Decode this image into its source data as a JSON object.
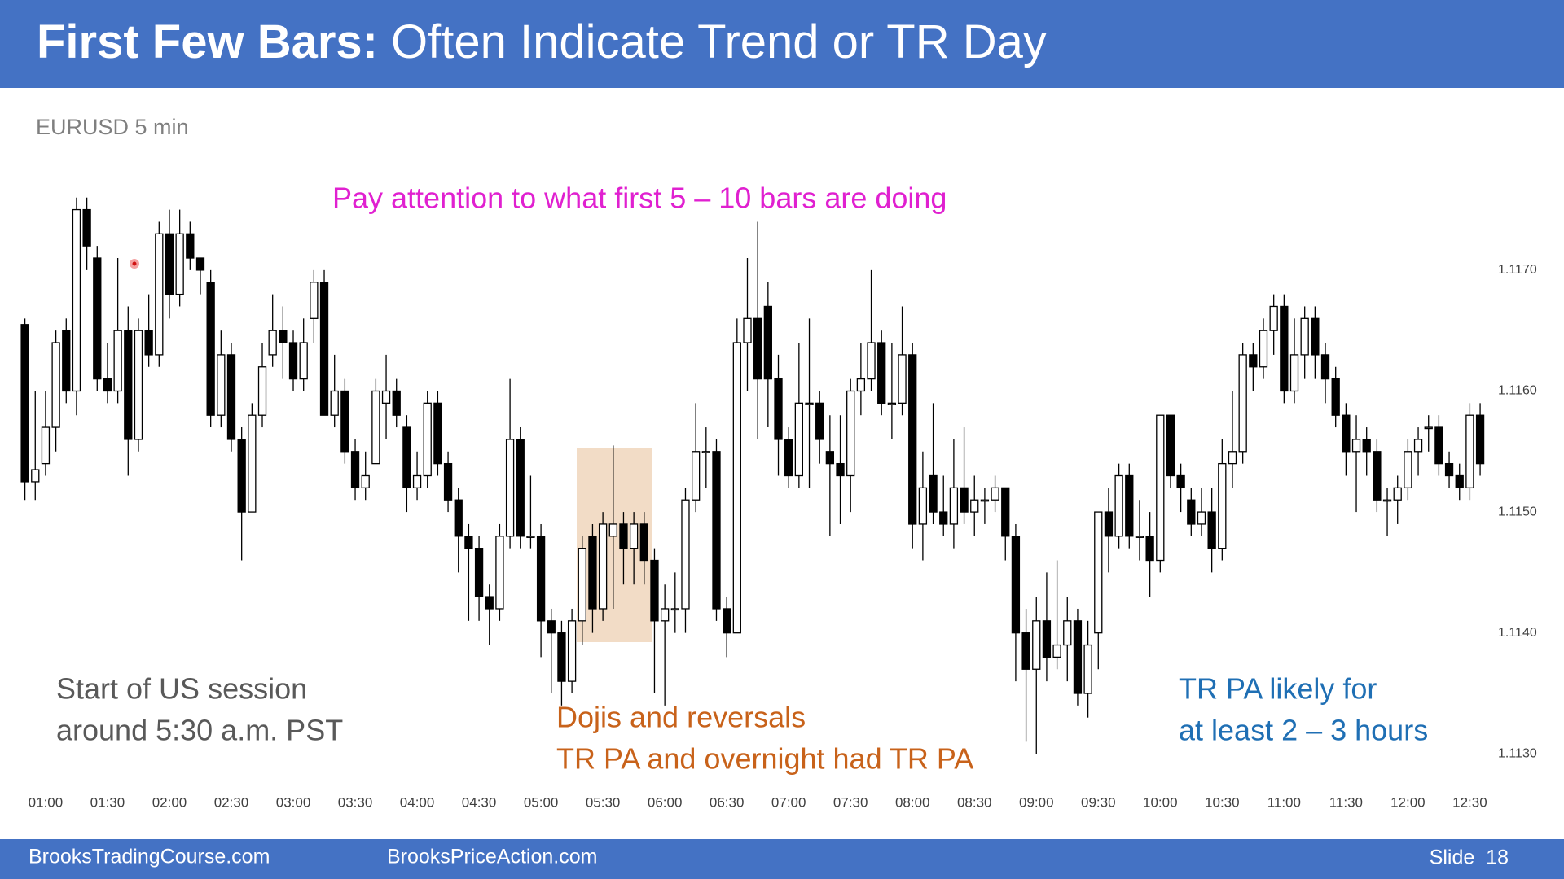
{
  "slide": {
    "title_bold": "First Few Bars:",
    "title_rest": "Often Indicate Trend or TR Day",
    "footer_left": "BrooksTradingCourse.com",
    "footer_center": "BrooksPriceAction.com",
    "footer_right": "Slide  18"
  },
  "chart_data": {
    "type": "candlestick",
    "subtitle": "EURUSD 5 min",
    "up_color": "#ffffff",
    "down_color": "#000000",
    "annotations": [
      {
        "lines": [
          "Pay attention to what first 5 – 10 bars are doing"
        ],
        "color": "#e020d0"
      },
      {
        "lines": [
          "Start of US session",
          "around 5:30 a.m. PST"
        ],
        "color": "#595959"
      },
      {
        "lines": [
          "Dojis and reversals",
          "TR PA and overnight had TR PA"
        ],
        "color": "#c8621a"
      },
      {
        "lines": [
          "TR PA likely for",
          "at least 2 – 3 hours"
        ],
        "color": "#1f6fb4"
      }
    ],
    "ylim": [
      1.1128,
      1.1178
    ],
    "yticks": [
      {
        "value": 1.117,
        "label": "1.1170"
      },
      {
        "value": 1.116,
        "label": "1.1160"
      },
      {
        "value": 1.115,
        "label": "1.1150"
      },
      {
        "value": 1.114,
        "label": "1.1140"
      },
      {
        "value": 1.113,
        "label": "1.1130"
      }
    ],
    "categories": [
      null,
      null,
      "01:00",
      null,
      null,
      null,
      null,
      null,
      "01:30",
      null,
      null,
      null,
      null,
      null,
      "02:00",
      null,
      null,
      null,
      null,
      null,
      "02:30",
      null,
      null,
      null,
      null,
      null,
      "03:00",
      null,
      null,
      null,
      null,
      null,
      "03:30",
      null,
      null,
      null,
      null,
      null,
      "04:00",
      null,
      null,
      null,
      null,
      null,
      "04:30",
      null,
      null,
      null,
      null,
      null,
      "05:00",
      null,
      null,
      null,
      null,
      null,
      "05:30",
      null,
      null,
      null,
      null,
      null,
      "06:00",
      null,
      null,
      null,
      null,
      null,
      "06:30",
      null,
      null,
      null,
      null,
      null,
      "07:00",
      null,
      null,
      null,
      null,
      null,
      "07:30",
      null,
      null,
      null,
      null,
      null,
      "08:00",
      null,
      null,
      null,
      null,
      null,
      "08:30",
      null,
      null,
      null,
      null,
      null,
      "09:00",
      null,
      null,
      null,
      null,
      null,
      "09:30",
      null,
      null,
      null,
      null,
      null,
      "10:00",
      null,
      null,
      null,
      null,
      null,
      "10:30",
      null,
      null,
      null,
      null,
      null,
      "11:00",
      null,
      null,
      null,
      null,
      null,
      "11:30",
      null,
      null,
      null,
      null,
      null,
      "12:00",
      null,
      null,
      null,
      null,
      null,
      "12:30",
      null
    ],
    "open": [
      1.11655,
      1.11525,
      1.1154,
      1.1157,
      1.1165,
      1.116,
      1.1175,
      1.1171,
      1.1161,
      1.116,
      1.1165,
      1.1156,
      1.1165,
      1.1163,
      1.1173,
      1.1168,
      1.1173,
      1.1171,
      1.1169,
      1.1158,
      1.1163,
      1.1156,
      1.115,
      1.1158,
      1.1163,
      1.1165,
      1.1164,
      1.1161,
      1.1166,
      1.1169,
      1.1158,
      1.116,
      1.1155,
      1.1152,
      1.1154,
      1.1159,
      1.116,
      1.1157,
      1.1152,
      1.1153,
      1.1159,
      1.1154,
      1.1151,
      1.1148,
      1.1147,
      1.1143,
      1.1142,
      1.1148,
      1.1156,
      1.1148,
      1.1148,
      1.1141,
      1.114,
      1.1136,
      1.1141,
      1.1148,
      1.1142,
      1.1148,
      1.1149,
      1.1147,
      1.1149,
      1.1146,
      1.1141,
      1.1142,
      1.1142,
      1.1151,
      1.1155,
      1.1155,
      1.1142,
      1.114,
      1.1164,
      1.1166,
      1.1167,
      1.1161,
      1.1156,
      1.1153,
      1.1159,
      1.1159,
      1.1155,
      1.1154,
      1.1153,
      1.116,
      1.1161,
      1.1164,
      1.1159,
      1.1159,
      1.1163,
      1.1149,
      1.1153,
      1.115,
      1.1149,
      1.1152,
      1.115,
      1.1151,
      1.1151,
      1.1152,
      1.1148,
      1.114,
      1.1137,
      1.1141,
      1.1138,
      1.1139,
      1.1141,
      1.1135,
      1.114,
      1.115,
      1.1148,
      1.1153,
      1.1148,
      1.1148,
      1.1146,
      1.1158,
      1.1153,
      1.1151,
      1.1149,
      1.115,
      1.1147,
      1.1154,
      1.1155,
      1.1163,
      1.1162,
      1.1165,
      1.1167,
      1.116,
      1.1163,
      1.1166,
      1.1163,
      1.1161,
      1.1158,
      1.1155,
      1.1156,
      1.1155,
      1.1151,
      1.1151,
      1.1152,
      1.1155,
      1.1157,
      1.1157,
      1.1154,
      1.1153,
      1.1152,
      1.1158
    ],
    "high": [
      1.1166,
      1.116,
      1.116,
      1.1165,
      1.1166,
      1.1176,
      1.1176,
      1.1172,
      1.1164,
      1.1171,
      1.1167,
      1.1166,
      1.1168,
      1.1174,
      1.1175,
      1.1175,
      1.1174,
      1.1171,
      1.117,
      1.1165,
      1.1164,
      1.1157,
      1.1159,
      1.1164,
      1.1168,
      1.1167,
      1.1165,
      1.1166,
      1.117,
      1.117,
      1.1163,
      1.1161,
      1.1156,
      1.1155,
      1.1161,
      1.1163,
      1.1161,
      1.1158,
      1.1155,
      1.116,
      1.116,
      1.1155,
      1.1152,
      1.1149,
      1.1148,
      1.1144,
      1.1149,
      1.1161,
      1.1157,
      1.1153,
      1.1149,
      1.1142,
      1.1141,
      1.1142,
      1.1148,
      1.1149,
      1.115,
      1.11555,
      1.115,
      1.115,
      1.115,
      1.1147,
      1.1144,
      1.1145,
      1.1152,
      1.1159,
      1.1157,
      1.1156,
      1.1143,
      1.1166,
      1.1171,
      1.1174,
      1.1169,
      1.1163,
      1.1157,
      1.1164,
      1.1166,
      1.116,
      1.1158,
      1.1158,
      1.1161,
      1.1164,
      1.117,
      1.1165,
      1.1164,
      1.1167,
      1.1164,
      1.1155,
      1.1159,
      1.1153,
      1.1156,
      1.1157,
      1.1153,
      1.1152,
      1.1153,
      1.1152,
      1.1149,
      1.1142,
      1.1143,
      1.1145,
      1.1146,
      1.1143,
      1.1142,
      1.1141,
      1.115,
      1.1152,
      1.1154,
      1.1154,
      1.1151,
      1.115,
      1.1158,
      1.1158,
      1.1154,
      1.1152,
      1.1152,
      1.1152,
      1.1156,
      1.116,
      1.1164,
      1.1164,
      1.1166,
      1.1168,
      1.1168,
      1.1166,
      1.1167,
      1.1167,
      1.1164,
      1.1162,
      1.1159,
      1.1158,
      1.1157,
      1.1156,
      1.1152,
      1.1153,
      1.1156,
      1.1157,
      1.1158,
      1.1158,
      1.1155,
      1.1154,
      1.1159,
      1.1159
    ],
    "low": [
      1.1151,
      1.1151,
      1.1153,
      1.1155,
      1.1159,
      1.1158,
      1.117,
      1.116,
      1.1159,
      1.1159,
      1.1153,
      1.1155,
      1.1162,
      1.1162,
      1.1166,
      1.1167,
      1.117,
      1.1168,
      1.1157,
      1.1157,
      1.1155,
      1.1146,
      1.115,
      1.1157,
      1.1162,
      1.1161,
      1.116,
      1.116,
      1.1164,
      1.1158,
      1.1157,
      1.1154,
      1.1151,
      1.1151,
      1.1154,
      1.1156,
      1.1157,
      1.115,
      1.1151,
      1.1152,
      1.1153,
      1.115,
      1.1145,
      1.1141,
      1.1141,
      1.1139,
      1.1141,
      1.1147,
      1.1147,
      1.1147,
      1.1138,
      1.1135,
      1.1134,
      1.1135,
      1.1139,
      1.114,
      1.1141,
      1.1142,
      1.1144,
      1.1144,
      1.1144,
      1.1135,
      1.1134,
      1.114,
      1.114,
      1.115,
      1.1152,
      1.1141,
      1.1138,
      1.114,
      1.116,
      1.1156,
      1.1157,
      1.1153,
      1.1152,
      1.1152,
      1.1152,
      1.1154,
      1.1148,
      1.1149,
      1.115,
      1.1158,
      1.116,
      1.1158,
      1.1156,
      1.1158,
      1.1147,
      1.1146,
      1.1149,
      1.1148,
      1.1147,
      1.1149,
      1.1148,
      1.1149,
      1.115,
      1.1146,
      1.1136,
      1.1131,
      1.113,
      1.1136,
      1.1137,
      1.1136,
      1.1134,
      1.1133,
      1.1137,
      1.1145,
      1.1147,
      1.1147,
      1.1146,
      1.1143,
      1.1145,
      1.1152,
      1.115,
      1.1148,
      1.1148,
      1.1145,
      1.1146,
      1.1152,
      1.1154,
      1.116,
      1.1161,
      1.1163,
      1.1159,
      1.1159,
      1.1161,
      1.1161,
      1.1159,
      1.1157,
      1.1153,
      1.115,
      1.1153,
      1.115,
      1.1148,
      1.1149,
      1.1151,
      1.1153,
      1.1155,
      1.1153,
      1.1152,
      1.1151,
      1.1151,
      1.1153
    ],
    "close": [
      1.11525,
      1.11535,
      1.1157,
      1.1164,
      1.116,
      1.1175,
      1.1172,
      1.1161,
      1.116,
      1.1165,
      1.1156,
      1.1165,
      1.1163,
      1.1173,
      1.1168,
      1.1173,
      1.1171,
      1.117,
      1.1158,
      1.1163,
      1.1156,
      1.115,
      1.1158,
      1.1162,
      1.1165,
      1.1164,
      1.1161,
      1.1164,
      1.1169,
      1.1158,
      1.116,
      1.1155,
      1.1152,
      1.1153,
      1.116,
      1.116,
      1.1158,
      1.1152,
      1.1153,
      1.1159,
      1.1154,
      1.1151,
      1.1148,
      1.1147,
      1.1143,
      1.1142,
      1.1148,
      1.1156,
      1.1148,
      1.1148,
      1.1141,
      1.114,
      1.1136,
      1.1141,
      1.1147,
      1.1142,
      1.1149,
      1.1149,
      1.1147,
      1.1149,
      1.1146,
      1.1141,
      1.1142,
      1.1142,
      1.1151,
      1.1155,
      1.1155,
      1.1142,
      1.114,
      1.1164,
      1.1166,
      1.1161,
      1.1161,
      1.1156,
      1.1153,
      1.1159,
      1.1159,
      1.1156,
      1.1154,
      1.1153,
      1.116,
      1.1161,
      1.1164,
      1.1159,
      1.1159,
      1.1163,
      1.1149,
      1.1152,
      1.115,
      1.1149,
      1.1152,
      1.115,
      1.1151,
      1.1151,
      1.1152,
      1.1148,
      1.114,
      1.1137,
      1.1141,
      1.1138,
      1.1139,
      1.1141,
      1.1135,
      1.1139,
      1.115,
      1.1148,
      1.1153,
      1.1148,
      1.1148,
      1.1146,
      1.1158,
      1.1153,
      1.1152,
      1.1149,
      1.115,
      1.1147,
      1.1154,
      1.1155,
      1.1163,
      1.1162,
      1.1165,
      1.1167,
      1.116,
      1.1163,
      1.1166,
      1.1163,
      1.1161,
      1.1158,
      1.1155,
      1.1156,
      1.1155,
      1.1151,
      1.1151,
      1.1152,
      1.1155,
      1.1156,
      1.1157,
      1.1154,
      1.1153,
      1.1152,
      1.1158,
      1.1154
    ]
  }
}
